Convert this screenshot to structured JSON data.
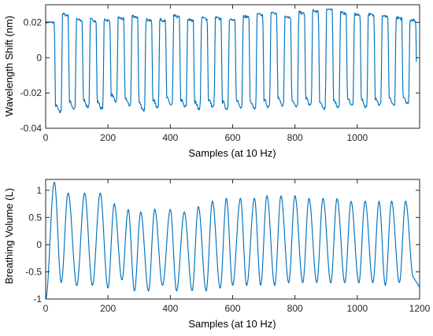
{
  "chart_data": [
    {
      "type": "line",
      "xlabel": "Samples (at 10 Hz)",
      "ylabel": "Wavelength Shift (nm)",
      "xlim": [
        0,
        1200
      ],
      "ylim": [
        -0.04,
        0.03
      ],
      "xticks": [
        0,
        200,
        400,
        600,
        800,
        1000
      ],
      "xtick_labels": [
        "0",
        "200",
        "400",
        "600",
        "800",
        "1000"
      ],
      "yticks": [
        -0.04,
        -0.02,
        0,
        0.02
      ],
      "ytick_labels": [
        "-0.04",
        "-0.02",
        "0",
        "0.02"
      ],
      "grid": false,
      "series": [
        {
          "color": "#0072BD",
          "waveform": "square",
          "high_level": [
            0.021,
            0.025,
            0.022,
            0.022,
            0.022,
            0.023,
            0.024,
            0.022,
            0.022,
            0.024,
            0.022,
            0.023,
            0.023,
            0.022,
            0.024,
            0.025,
            0.026,
            0.024,
            0.026,
            0.027,
            0.028,
            0.026,
            0.025,
            0.025,
            0.024,
            0.023,
            0.022,
            0.022
          ],
          "low_level": [
            -0.029,
            -0.027,
            -0.026,
            -0.027,
            -0.023,
            -0.025,
            -0.028,
            -0.026,
            -0.025,
            -0.026,
            -0.027,
            -0.026,
            -0.027,
            -0.026,
            -0.027,
            -0.026,
            -0.025,
            -0.026,
            -0.025,
            -0.027,
            -0.026,
            -0.025,
            -0.026,
            -0.025,
            -0.025,
            -0.024,
            -0.023
          ],
          "x": [
            0,
            10,
            22,
            30,
            40,
            52,
            66,
            80,
            88,
            100,
            110,
            120,
            130,
            140,
            150,
            160,
            175,
            190,
            200,
            220,
            240,
            260,
            280,
            300,
            320,
            340,
            360,
            380,
            400,
            420,
            440,
            460,
            480,
            500,
            520,
            540,
            560,
            580,
            600,
            620,
            640,
            660,
            680,
            700,
            720,
            740,
            760,
            780,
            800,
            820,
            840,
            860,
            880,
            900,
            920,
            940,
            960,
            980,
            1000,
            1020,
            1040,
            1060,
            1080,
            1100,
            1120,
            1140,
            1160,
            1180,
            1200
          ],
          "y": [
            0.021,
            0.022,
            0.021,
            -0.027,
            -0.029,
            -0.026,
            0.024,
            0.022,
            -0.026,
            -0.027,
            -0.025,
            0.022,
            0.021,
            -0.025,
            -0.026,
            0.022,
            0.021,
            -0.028,
            -0.026,
            0.022,
            -0.026,
            0.023,
            -0.028,
            0.021,
            -0.025,
            0.024,
            -0.026,
            0.022,
            -0.025,
            0.023,
            -0.027,
            0.022,
            -0.026,
            0.024,
            -0.027,
            0.025,
            -0.026,
            0.026,
            -0.025,
            0.024,
            -0.025,
            0.026,
            -0.027,
            0.027,
            -0.026,
            0.028,
            -0.025,
            0.026,
            -0.026,
            0.025,
            -0.025,
            0.025,
            -0.025,
            0.024,
            -0.025,
            0.023,
            -0.024,
            0.022,
            -0.023,
            0.022,
            -0.023,
            0.022,
            -0.022,
            0.022,
            -0.023,
            0.022,
            -0.022,
            0.022,
            0.021
          ]
        }
      ]
    },
    {
      "type": "line",
      "xlabel": "Samples (at 10 Hz)",
      "ylabel": "Breathing Volume (L)",
      "xlim": [
        0,
        1200
      ],
      "ylim": [
        -1,
        1.2
      ],
      "xticks": [
        0,
        200,
        400,
        600,
        800,
        1000,
        1200
      ],
      "xtick_labels": [
        "0",
        "200",
        "400",
        "600",
        "800",
        "1000",
        "1200"
      ],
      "yticks": [
        -1,
        -0.5,
        0,
        0.5,
        1
      ],
      "ytick_labels": [
        "-1",
        "-0.5",
        "0",
        "0.5",
        "1"
      ],
      "grid": false,
      "series": [
        {
          "color": "#0072BD",
          "waveform": "sine",
          "peaks_x": [
            28,
            72,
            125,
            175,
            220,
            265,
            305,
            350,
            400,
            445,
            490,
            535,
            580,
            625,
            670,
            710,
            755,
            800,
            845,
            890,
            935,
            980,
            1025,
            1070,
            1110,
            1155
          ],
          "peaks_y": [
            1.15,
            0.95,
            0.95,
            0.95,
            0.75,
            0.65,
            0.6,
            0.65,
            0.65,
            0.6,
            0.7,
            0.8,
            0.85,
            0.85,
            0.85,
            0.9,
            0.9,
            0.9,
            0.85,
            0.85,
            0.85,
            0.8,
            0.8,
            0.8,
            0.8,
            0.8
          ],
          "troughs_x": [
            0,
            50,
            100,
            150,
            200,
            245,
            285,
            330,
            375,
            420,
            470,
            515,
            560,
            600,
            645,
            690,
            735,
            780,
            825,
            870,
            915,
            960,
            1005,
            1050,
            1090,
            1135,
            1180
          ],
          "troughs_y": [
            -1.0,
            -0.7,
            -0.75,
            -0.75,
            -0.8,
            -0.65,
            -0.85,
            -0.85,
            -0.75,
            -0.85,
            -0.85,
            -0.85,
            -0.8,
            -0.75,
            -0.75,
            -0.75,
            -0.75,
            -0.7,
            -0.7,
            -0.7,
            -0.7,
            -0.7,
            -0.7,
            -0.7,
            -0.75,
            -0.7,
            -0.6
          ]
        }
      ]
    }
  ]
}
